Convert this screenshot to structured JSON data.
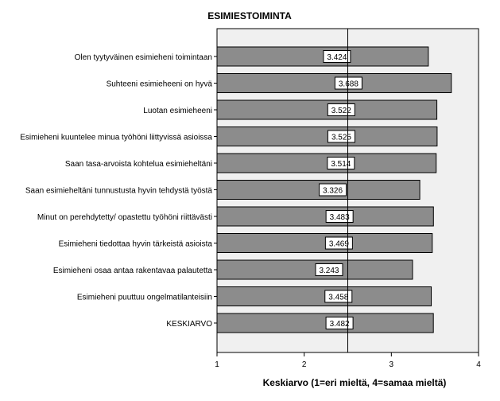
{
  "chart_data": {
    "type": "bar",
    "orientation": "horizontal",
    "title": "ESIMIESTOIMINTA",
    "xlabel": "Keskiarvo (1=eri mieltä, 4=samaa mieltä)",
    "ylabel": "",
    "xlim": [
      1,
      4
    ],
    "ticks": [
      "1",
      "2",
      "3",
      "4"
    ],
    "reference_line": 2.5,
    "categories": [
      "Olen tyytyväinen esimieheni toimintaan",
      "Suhteeni esimieheeni on hyvä",
      "Luotan esimieheeni",
      "Esimieheni kuuntelee minua työhöni liittyvissä asioissa",
      "Saan tasa-arvoista kohtelua esimieheltäni",
      "Saan esimieheltäni tunnustusta hyvin tehdystä työstä",
      "Minut on perehdytetty/ opastettu työhöni riittävästi",
      "Esimieheni tiedottaa hyvin tärkeistä asioista",
      "Esimieheni osaa antaa rakentavaa palautetta",
      "Esimieheni puuttuu ongelmatilanteisiin",
      "KESKIARVO"
    ],
    "values": [
      3.424,
      3.688,
      3.522,
      3.525,
      3.514,
      3.326,
      3.483,
      3.469,
      3.243,
      3.458,
      3.482
    ],
    "value_labels": [
      "3.424",
      "3.688",
      "3.522",
      "3.525",
      "3.514",
      "3.326",
      "3.483",
      "3.469",
      "3.243",
      "3.458",
      "3.482"
    ],
    "colors": {
      "bar": "#8c8c8c",
      "plot_bg": "#f0f0f0",
      "bar_stroke": "#000000"
    },
    "grid": false,
    "legend": "none"
  }
}
